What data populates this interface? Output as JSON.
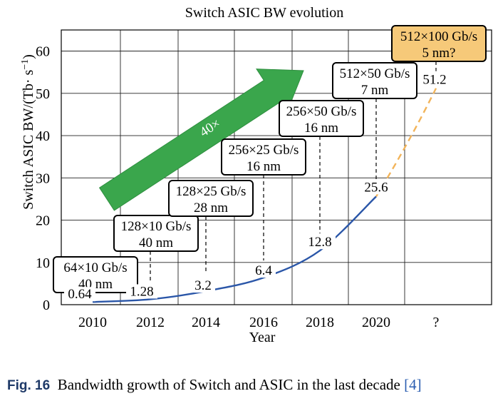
{
  "chart_data": {
    "type": "line",
    "title": "Switch ASIC BW evolution",
    "xlabel": "Year",
    "ylabel": "Switch ASIC BW/(Tb· s",
    "ylabel_sup": "−1",
    "ylabel_end": ")",
    "x_tick_labels": [
      "2010",
      "2012",
      "2014",
      "2016",
      "2018",
      "2020",
      "?"
    ],
    "y_tick_labels": [
      "0",
      "10",
      "20",
      "30",
      "40",
      "50",
      "60"
    ],
    "ylim": [
      0,
      65
    ],
    "grid": true,
    "series": [
      {
        "style": "solid",
        "color": "#2a56a8",
        "points": [
          {
            "x": "2010",
            "y": 0.64
          },
          {
            "x": "2012",
            "y": 1.28
          },
          {
            "x": "2014",
            "y": 3.2
          },
          {
            "x": "2016",
            "y": 6.4
          },
          {
            "x": "2018",
            "y": 12.8
          },
          {
            "x": "2020",
            "y": 25.6
          }
        ]
      },
      {
        "style": "dashed",
        "color": "#f2b45a",
        "points": [
          {
            "x": "2020",
            "y": 25.6
          },
          {
            "x": "?",
            "y": 51.2
          }
        ]
      }
    ],
    "data_labels": [
      "0.64",
      "1.28",
      "3.2",
      "6.4",
      "12.8",
      "25.6",
      "51.2"
    ],
    "annotations": [
      {
        "x": "2010",
        "line1": "64×10 Gb/s",
        "line2": "40 nm"
      },
      {
        "x": "2012",
        "line1": "128×10 Gb/s",
        "line2": "40 nm"
      },
      {
        "x": "2014",
        "line1": "128×25 Gb/s",
        "line2": "28 nm"
      },
      {
        "x": "2016",
        "line1": "256×25 Gb/s",
        "line2": "16 nm"
      },
      {
        "x": "2018",
        "line1": "256×50 Gb/s",
        "line2": "16 nm"
      },
      {
        "x": "2020",
        "line1": "512×50 Gb/s",
        "line2": "7 nm"
      },
      {
        "x": "?",
        "line1": "512×100 Gb/s",
        "line2": "5 nm?",
        "highlight": "#f6c979"
      }
    ],
    "growth_arrow": {
      "label": "40×",
      "color": "#3aa64c"
    }
  },
  "caption": {
    "fig_label": "Fig. 16",
    "text": "Bandwidth growth of Switch and ASIC in the last decade",
    "ref": "[4]"
  }
}
